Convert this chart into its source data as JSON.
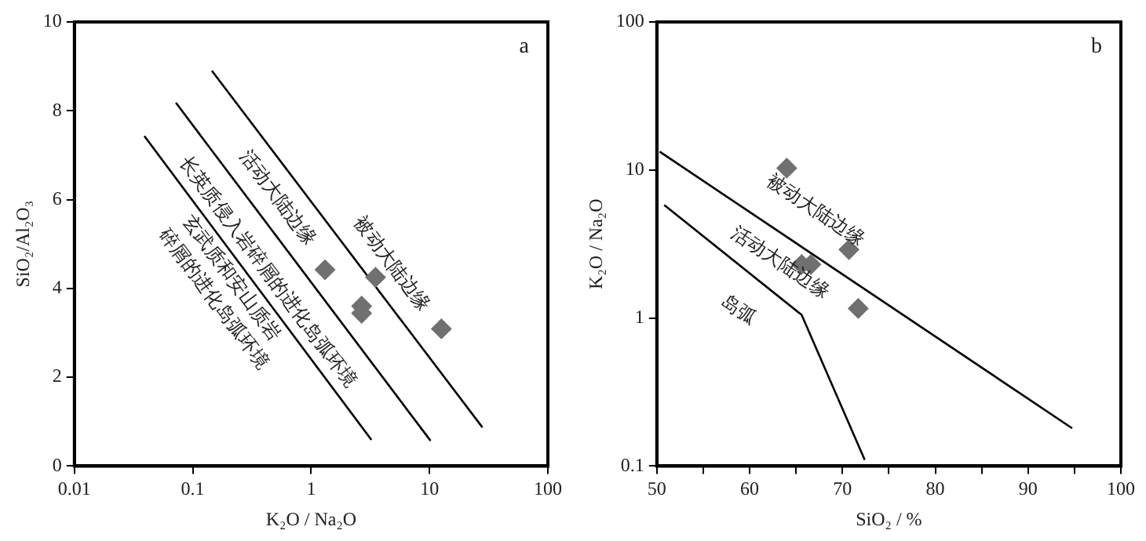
{
  "chart_data": [
    {
      "type": "scatter",
      "xlabel": "K₂O / Na₂O",
      "ylabel": "SiO₂/Al₂O₃",
      "log": "x",
      "xlim": [
        0.01,
        100
      ],
      "ylim": [
        0,
        10
      ],
      "xticks": [
        0.01,
        0.1,
        1,
        10,
        100
      ],
      "yticks": [
        0,
        2,
        4,
        6,
        8,
        10
      ],
      "grid": false,
      "legend": false,
      "series": [
        {
          "type": "scatter",
          "marker": "diamond",
          "color": "#707070",
          "x": [
            1.31,
            2.67,
            2.67,
            3.5,
            12.6
          ],
          "values": [
            4.42,
            3.6,
            3.44,
            4.25,
            3.09
          ]
        },
        {
          "type": "line",
          "color": "#000000",
          "x": [
            0.039,
            3.23
          ],
          "values": [
            7.43,
            0.59
          ]
        },
        {
          "type": "line",
          "color": "#000000",
          "x": [
            0.072,
            10.2
          ],
          "values": [
            8.18,
            0.57
          ]
        },
        {
          "type": "line",
          "color": "#000000",
          "x": [
            0.145,
            28
          ],
          "values": [
            8.9,
            0.87
          ]
        }
      ],
      "annotations": [
        "a",
        "活动大陆边缘",
        "被动大陆边缘",
        "长英质侵入岩碎屑的进化岛弧环境",
        "玄武质和安山质岩",
        "碎屑的进化岛弧环境"
      ]
    },
    {
      "type": "scatter",
      "xlabel": "SiO₂ / %",
      "ylabel": "K₂O / Na₂O",
      "log": "y",
      "xlim": [
        50,
        100
      ],
      "ylim": [
        0.1,
        100
      ],
      "xticks": [
        50,
        {
          "value": 55,
          "label": null
        },
        60,
        {
          "value": 65,
          "label": null
        },
        70,
        {
          "value": 75,
          "label": null
        },
        80,
        {
          "value": 85,
          "label": null
        },
        90,
        {
          "value": 95,
          "label": null
        },
        100
      ],
      "yticks": [
        0.1,
        1,
        10,
        100
      ],
      "grid": false,
      "legend": false,
      "series": [
        {
          "type": "scatter",
          "marker": "diamond",
          "color": "#707070",
          "x": [
            64.0,
            70.7,
            65.6,
            66.6,
            71.7
          ],
          "values": [
            10.3,
            2.9,
            2.3,
            2.3,
            1.16
          ]
        },
        {
          "type": "line",
          "color": "#000000",
          "x": [
            50.3,
            94.75
          ],
          "values": [
            13.3,
            0.18
          ]
        },
        {
          "type": "line",
          "color": "#000000",
          "x": [
            50.8,
            65.6,
            72.4
          ],
          "values": [
            5.8,
            1.05,
            0.11
          ]
        }
      ],
      "annotations": [
        "b",
        "被动大陆边缘",
        "活动大陆边缘",
        "岛弧"
      ]
    }
  ]
}
